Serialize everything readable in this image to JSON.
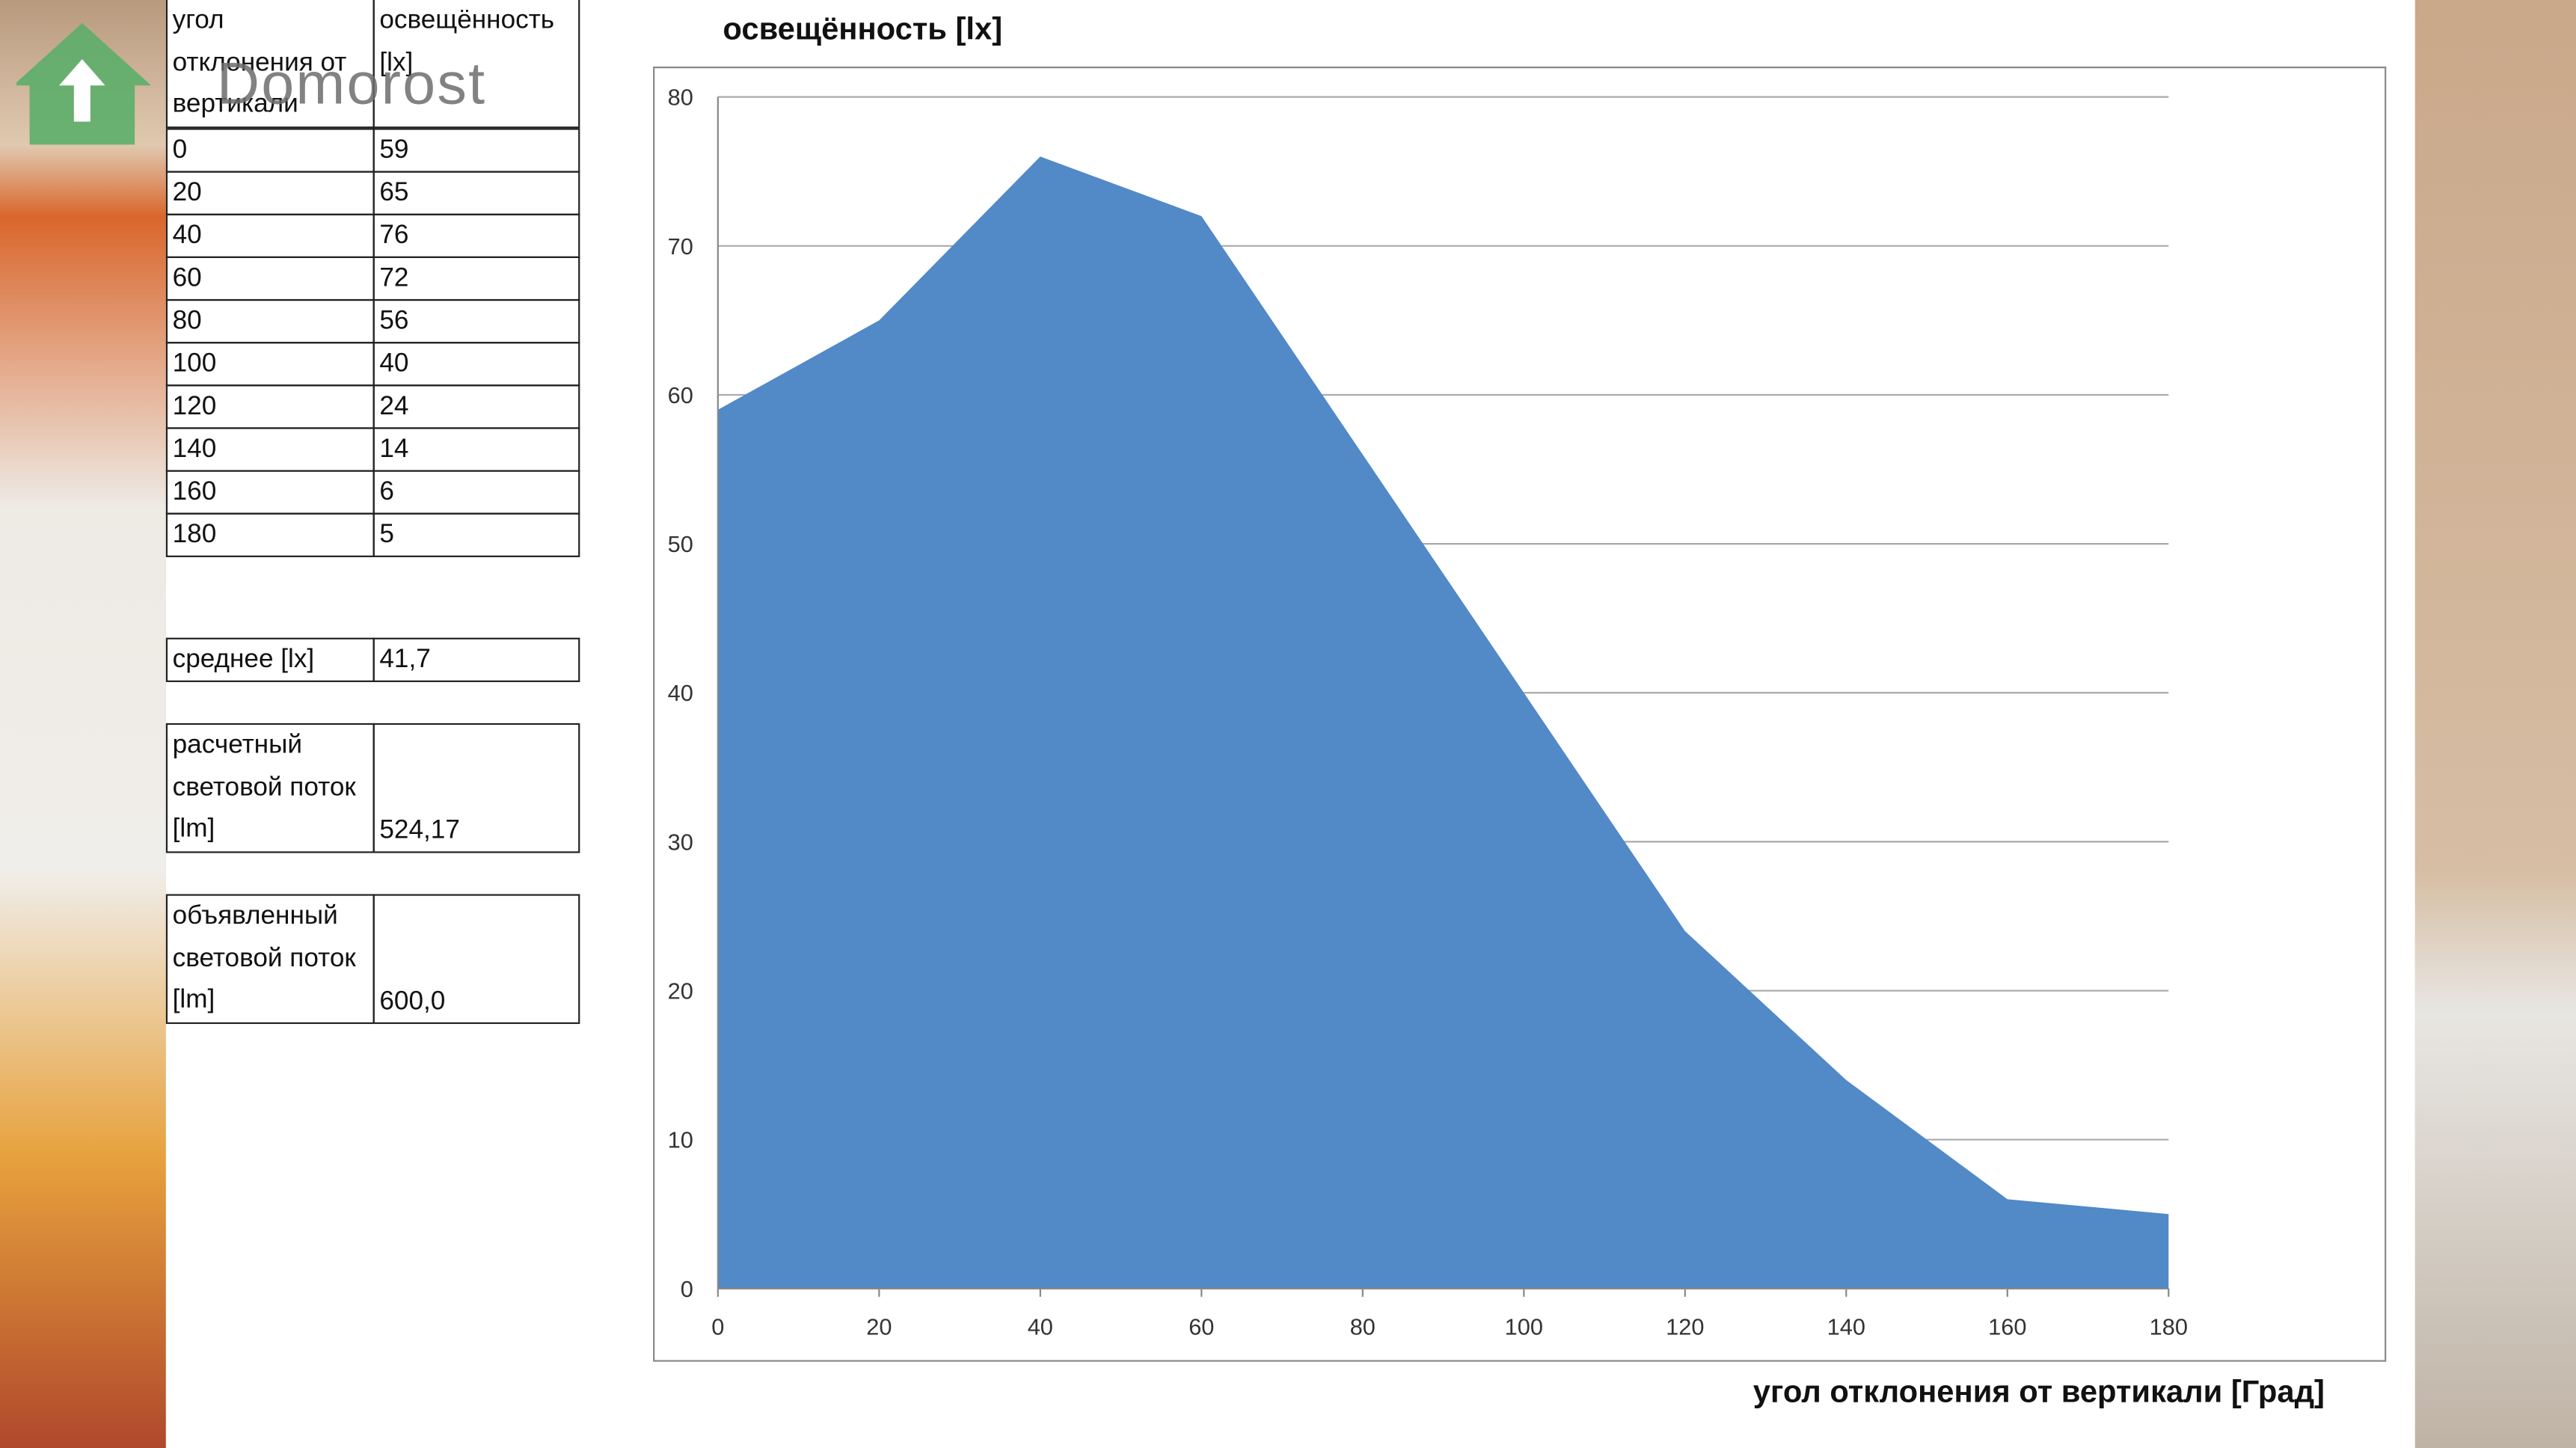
{
  "watermark": "Domorost",
  "table": {
    "header": [
      "угол отклонения от вертикали",
      "освещённость [lx]"
    ],
    "rows": [
      [
        0,
        59
      ],
      [
        20,
        65
      ],
      [
        40,
        76
      ],
      [
        60,
        72
      ],
      [
        80,
        56
      ],
      [
        100,
        40
      ],
      [
        120,
        24
      ],
      [
        140,
        14
      ],
      [
        160,
        6
      ],
      [
        180,
        5
      ]
    ]
  },
  "summary": [
    {
      "label": "среднее [lx]",
      "value": "41,7"
    },
    {
      "label": "расчетный световой поток [lm]",
      "value": "524,17"
    },
    {
      "label": "объявленный световой поток [lm]",
      "value": "600,0"
    }
  ],
  "chart_data": {
    "type": "area",
    "title": "освещённость [lx]",
    "x_label": "угол отклонения от вертикали [Град]",
    "x": [
      0,
      20,
      40,
      60,
      80,
      100,
      120,
      140,
      160,
      180
    ],
    "values": [
      59,
      65,
      76,
      72,
      56,
      40,
      24,
      14,
      6,
      5
    ],
    "color": "#5289c7",
    "xlim": [
      0,
      180
    ],
    "xticks": [
      0,
      20,
      40,
      60,
      80,
      100,
      120,
      140,
      160,
      180
    ],
    "ylim": [
      0,
      80
    ],
    "yticks": [
      0,
      10,
      20,
      30,
      40,
      50,
      60,
      70,
      80
    ],
    "grid": true
  }
}
